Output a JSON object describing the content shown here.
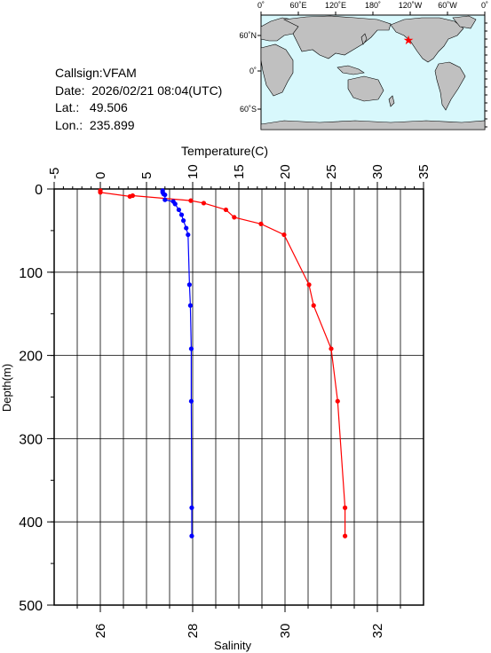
{
  "info": {
    "callsign_label": "Callsign:",
    "callsign": "VFAM",
    "date_label": "Date:",
    "date": "2026/02/21 08:04(UTC)",
    "lat_label": "Lat.:",
    "lat": "49.506",
    "lon_label": "Lon.:",
    "lon": "235.899"
  },
  "map": {
    "lon_ticks": [
      "0˚",
      "60˚E",
      "120˚E",
      "180˚",
      "120˚W",
      "60˚W",
      "0˚"
    ],
    "lat_ticks": [
      "60˚N",
      "0˚",
      "60˚S"
    ],
    "ocean_color": "#d8f8fc",
    "land_color": "#c0c0c0",
    "marker_color": "#ff0000",
    "marker_icon": "star-icon"
  },
  "chart_data": {
    "type": "line",
    "ylabel": "Depth(m)",
    "ylim": [
      0,
      500
    ],
    "y_ticks": [
      "0",
      "100",
      "200",
      "300",
      "400",
      "500"
    ],
    "y_inverted": true,
    "grid": true,
    "top_axis": {
      "label": "Temperature(C)",
      "range": [
        -5,
        35
      ],
      "ticks": [
        "-5",
        "0",
        "5",
        "10",
        "15",
        "20",
        "25",
        "30",
        "35"
      ]
    },
    "bottom_axis": {
      "label": "Salinity",
      "range": [
        25,
        33
      ],
      "ticks": [
        "26",
        "28",
        "30",
        "32"
      ]
    },
    "series": [
      {
        "axis": "top",
        "color": "#ff0000",
        "points": [
          [
            0.0,
            2
          ],
          [
            0.0,
            4
          ],
          [
            3.2,
            9
          ],
          [
            3.5,
            8
          ],
          [
            9.8,
            14
          ],
          [
            11.2,
            17
          ],
          [
            13.6,
            25
          ],
          [
            14.5,
            34
          ],
          [
            17.4,
            42
          ],
          [
            19.9,
            55
          ],
          [
            22.6,
            115
          ],
          [
            23.1,
            140
          ],
          [
            25.0,
            192
          ],
          [
            25.7,
            255
          ],
          [
            26.5,
            383
          ],
          [
            26.5,
            417
          ]
        ]
      },
      {
        "axis": "bottom",
        "color": "#0000ff",
        "points": [
          [
            27.35,
            2
          ],
          [
            27.35,
            4
          ],
          [
            27.37,
            6
          ],
          [
            27.4,
            7
          ],
          [
            27.4,
            13
          ],
          [
            27.58,
            15
          ],
          [
            27.62,
            18
          ],
          [
            27.7,
            25
          ],
          [
            27.76,
            31
          ],
          [
            27.8,
            38
          ],
          [
            27.86,
            47
          ],
          [
            27.9,
            55
          ],
          [
            27.93,
            115
          ],
          [
            27.95,
            140
          ],
          [
            27.97,
            192
          ],
          [
            27.97,
            255
          ],
          [
            27.98,
            383
          ],
          [
            27.98,
            417
          ]
        ]
      }
    ]
  }
}
